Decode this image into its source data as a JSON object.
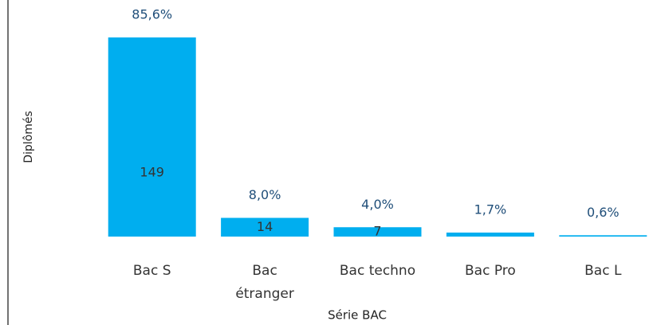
{
  "chart_data": {
    "type": "bar",
    "x_label": "Série BAC",
    "y_label": "Diplômés",
    "categories": [
      "Bac S",
      "Bac étranger",
      "Bac techno",
      "Bac Pro",
      "Bac L"
    ],
    "values": [
      149,
      14,
      7,
      3,
      1
    ],
    "show_value_label": [
      true,
      true,
      true,
      false,
      false
    ],
    "percentages": [
      85.6,
      8.0,
      4.0,
      1.7,
      0.6
    ],
    "percentage_labels": [
      "85,6%",
      "8,0%",
      "4,0%",
      "1,7%",
      "0,6%"
    ],
    "color": "#00aeef",
    "ylim": [
      0,
      149
    ]
  }
}
